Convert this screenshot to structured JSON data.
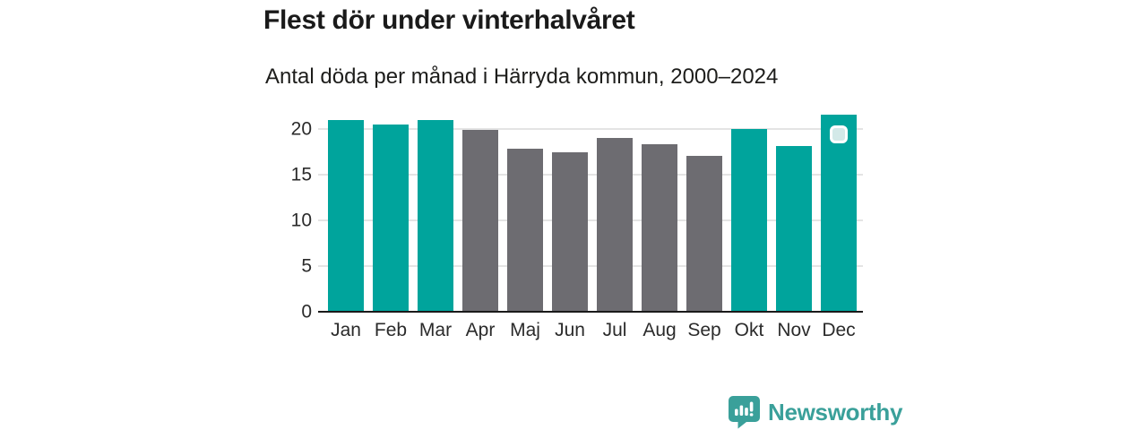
{
  "header": {
    "title": "Flest dör under vinterhalvåret",
    "subtitle": "Antal döda per månad i Härryda kommun, 2000–2024"
  },
  "chart_data": {
    "type": "bar",
    "title": "Flest dör under vinterhalvåret",
    "subtitle": "Antal döda per månad i Härryda kommun, 2000–2024",
    "categories": [
      "Jan",
      "Feb",
      "Mar",
      "Apr",
      "Maj",
      "Jun",
      "Jul",
      "Aug",
      "Sep",
      "Okt",
      "Nov",
      "Dec"
    ],
    "values": [
      21.0,
      20.5,
      21.0,
      19.9,
      17.8,
      17.5,
      19.0,
      18.3,
      17.1,
      20.0,
      18.1,
      21.6
    ],
    "groups": [
      "winter",
      "winter",
      "winter",
      "summer",
      "summer",
      "summer",
      "summer",
      "summer",
      "summer",
      "winter",
      "winter",
      "winter"
    ],
    "group_colors": {
      "winter": "#00a49c",
      "summer": "#6d6c71"
    },
    "yticks": [
      0,
      5,
      10,
      15,
      20
    ],
    "ylim": [
      0,
      22.7
    ],
    "xlabel": "",
    "ylabel": "",
    "grid": "horizontal-only",
    "legend": "none",
    "marker": {
      "category": "Dec",
      "fill": "#d3e9e8",
      "border": "#ffffff"
    }
  },
  "colors": {
    "accent_teal": "#00a49c",
    "neutral_gray": "#6d6c71",
    "gridline": "#e4e4e4",
    "axis_line": "#1a1a1a",
    "brand_teal": "#3aa09a"
  },
  "footer": {
    "brand": "Newsworthy"
  },
  "icons": {
    "logo": "newsworthy-speech-bubble-bar-chart-icon"
  }
}
